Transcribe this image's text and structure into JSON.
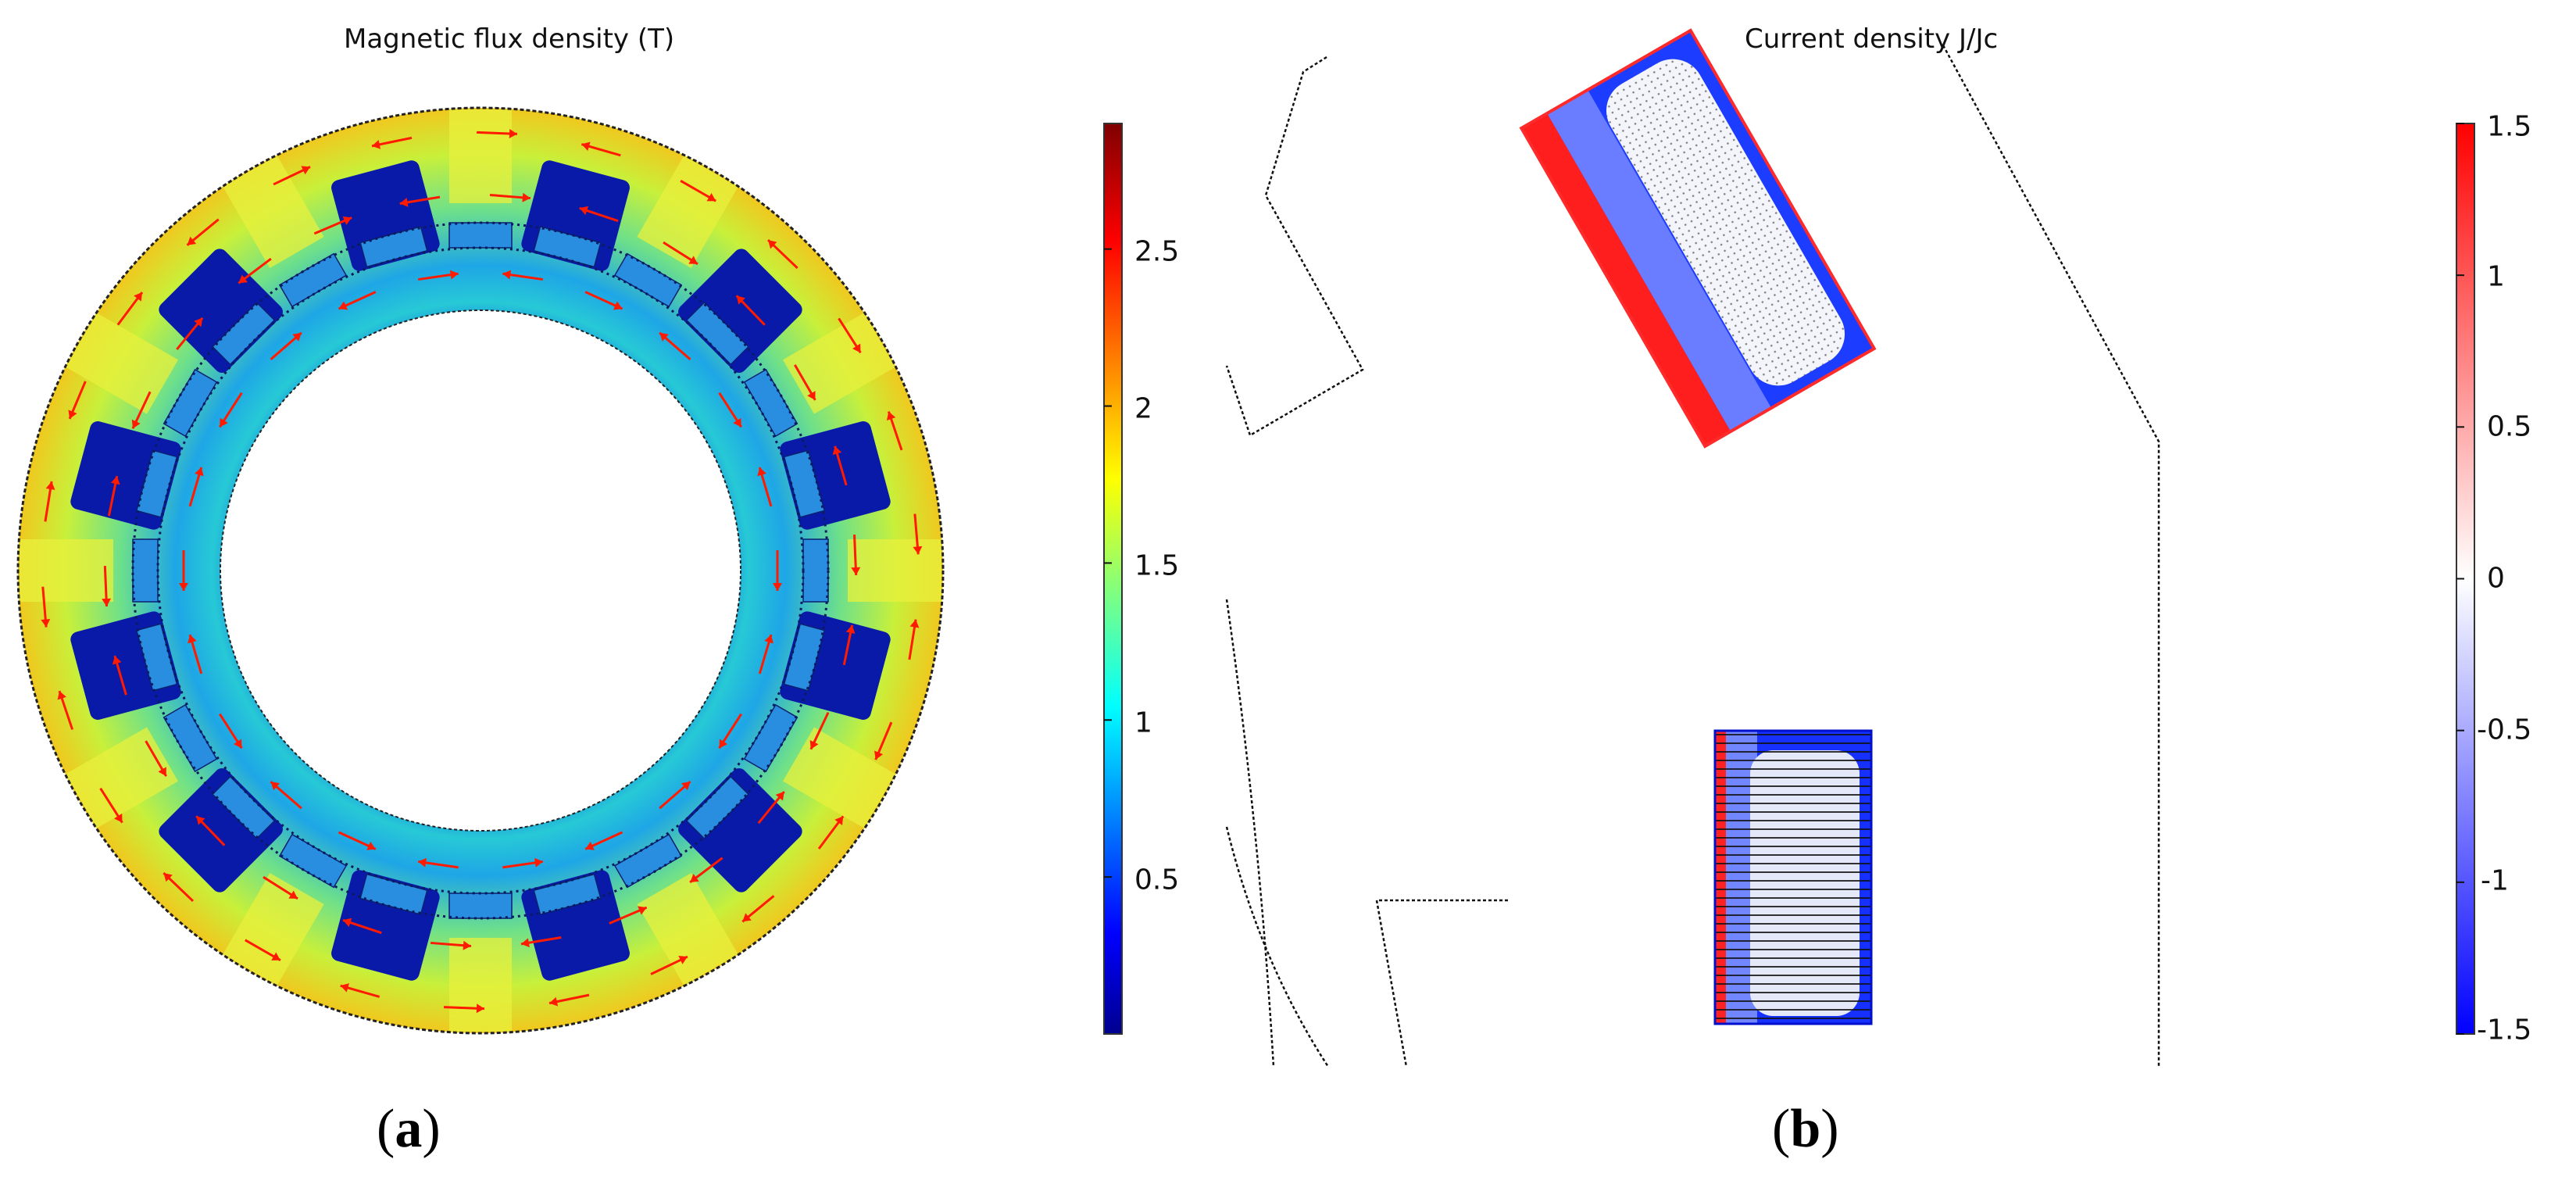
{
  "panels": [
    {
      "id": "a",
      "title": "Magnetic flux density (T)",
      "label_open": "(",
      "label_letter": "a",
      "label_close": ")",
      "colorbar": {
        "colormap": "jet",
        "range": [
          0,
          2.9
        ],
        "ticks": [
          "2.5",
          "2",
          "1.5",
          "1",
          "0.5"
        ],
        "tick_values": [
          2.5,
          2,
          1.5,
          1,
          0.5
        ]
      }
    },
    {
      "id": "b",
      "title": "Current density J/Jc",
      "label_open": "(",
      "label_letter": "b",
      "label_close": ")",
      "colorbar": {
        "colormap": "blue-white-red",
        "range": [
          -1.5,
          1.5
        ],
        "ticks": [
          "1.5",
          "1",
          "0.5",
          "0",
          "-0.5",
          "-1",
          "-1.5"
        ],
        "tick_values": [
          1.5,
          1,
          0.5,
          0,
          -0.5,
          -1,
          -1.5
        ]
      }
    }
  ],
  "colors": {
    "jet_low": "#00008f",
    "jet_high": "#800000",
    "arrow": "#ff1a00",
    "j_positive": "#ff0000",
    "j_negative": "#0000ff"
  }
}
